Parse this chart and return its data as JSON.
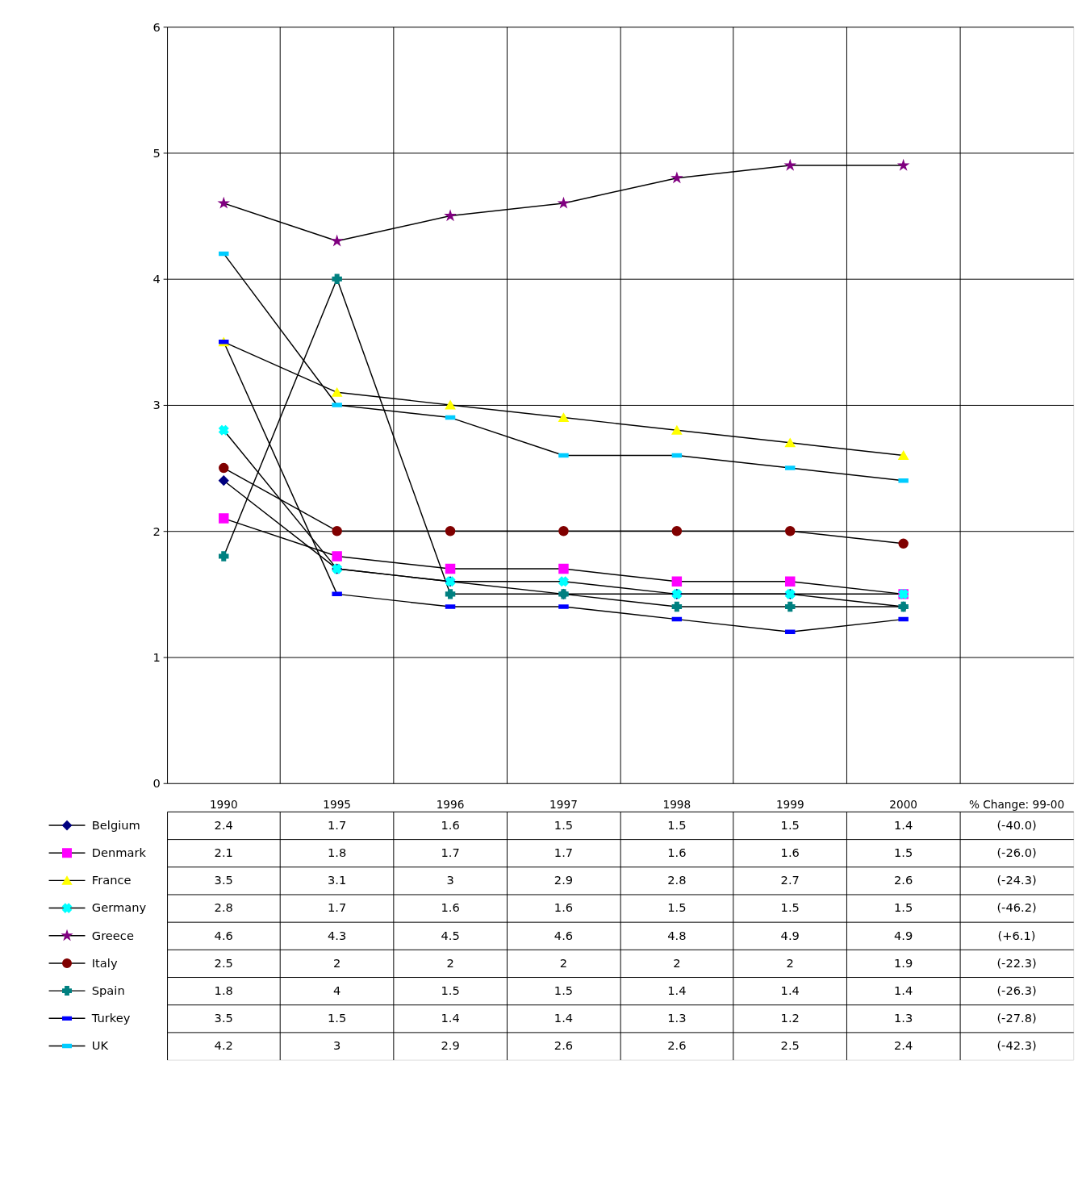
{
  "chart_data": {
    "type": "line",
    "categories": [
      "1990",
      "1995",
      "1996",
      "1997",
      "1998",
      "1999",
      "2000",
      "% Change: 99-00"
    ],
    "ylim": [
      0,
      6
    ],
    "yticks": [
      0,
      1,
      2,
      3,
      4,
      5,
      6
    ],
    "grid": true,
    "legend": "bottom",
    "series": [
      {
        "name": "Belgium",
        "color": "#000080",
        "marker": "diamond",
        "values": [
          2.4,
          1.7,
          1.6,
          1.5,
          1.5,
          1.5,
          1.4,
          null
        ],
        "value_labels": [
          "2.4",
          "1.7",
          "1.6",
          "1.5",
          "1.5",
          "1.5",
          "1.4",
          "(-40.0)"
        ]
      },
      {
        "name": "Denmark",
        "color": "#ff00ff",
        "marker": "square",
        "values": [
          2.1,
          1.8,
          1.7,
          1.7,
          1.6,
          1.6,
          1.5,
          null
        ],
        "value_labels": [
          "2.1",
          "1.8",
          "1.7",
          "1.7",
          "1.6",
          "1.6",
          "1.5",
          "(-26.0)"
        ]
      },
      {
        "name": "France",
        "color": "#ffff00",
        "marker": "triangle",
        "values": [
          3.5,
          3.1,
          3,
          2.9,
          2.8,
          2.7,
          2.6,
          null
        ],
        "value_labels": [
          "3.5",
          "3.1",
          "3",
          "2.9",
          "2.8",
          "2.7",
          "2.6",
          "(-24.3)"
        ]
      },
      {
        "name": "Germany",
        "color": "#00ffff",
        "marker": "cross",
        "values": [
          2.8,
          1.7,
          1.6,
          1.6,
          1.5,
          1.5,
          1.5,
          null
        ],
        "value_labels": [
          "2.8",
          "1.7",
          "1.6",
          "1.6",
          "1.5",
          "1.5",
          "1.5",
          "(-46.2)"
        ]
      },
      {
        "name": "Greece",
        "color": "#800080",
        "marker": "star",
        "values": [
          4.6,
          4.3,
          4.5,
          4.6,
          4.8,
          4.9,
          4.9,
          null
        ],
        "value_labels": [
          "4.6",
          "4.3",
          "4.5",
          "4.6",
          "4.8",
          "4.9",
          "4.9",
          "(+6.1)"
        ]
      },
      {
        "name": "Italy",
        "color": "#800000",
        "marker": "circle",
        "values": [
          2.5,
          2,
          2,
          2,
          2,
          2,
          1.9,
          null
        ],
        "value_labels": [
          "2.5",
          "2",
          "2",
          "2",
          "2",
          "2",
          "1.9",
          "(-22.3)"
        ]
      },
      {
        "name": "Spain",
        "color": "#008080",
        "marker": "cross",
        "values": [
          1.8,
          4,
          1.5,
          1.5,
          1.4,
          1.4,
          1.4,
          null
        ],
        "value_labels": [
          "1.8",
          "4",
          "1.5",
          "1.5",
          "1.4",
          "1.4",
          "1.4",
          "(-26.3)"
        ]
      },
      {
        "name": "Turkey",
        "color": "#0000ff",
        "marker": "square",
        "values": [
          3.5,
          1.5,
          1.4,
          1.4,
          1.3,
          1.2,
          1.3,
          null
        ],
        "value_labels": [
          "3.5",
          "1.5",
          "1.4",
          "1.4",
          "1.3",
          "1.2",
          "1.3",
          "(-27.8)"
        ]
      },
      {
        "name": "UK",
        "color": "#00ccff",
        "marker": "square",
        "values": [
          4.2,
          3,
          2.9,
          2.6,
          2.6,
          2.5,
          2.4,
          null
        ],
        "value_labels": [
          "4.2",
          "3",
          "2.9",
          "2.6",
          "2.6",
          "2.5",
          "2.4",
          "(-42.3)"
        ]
      }
    ]
  }
}
